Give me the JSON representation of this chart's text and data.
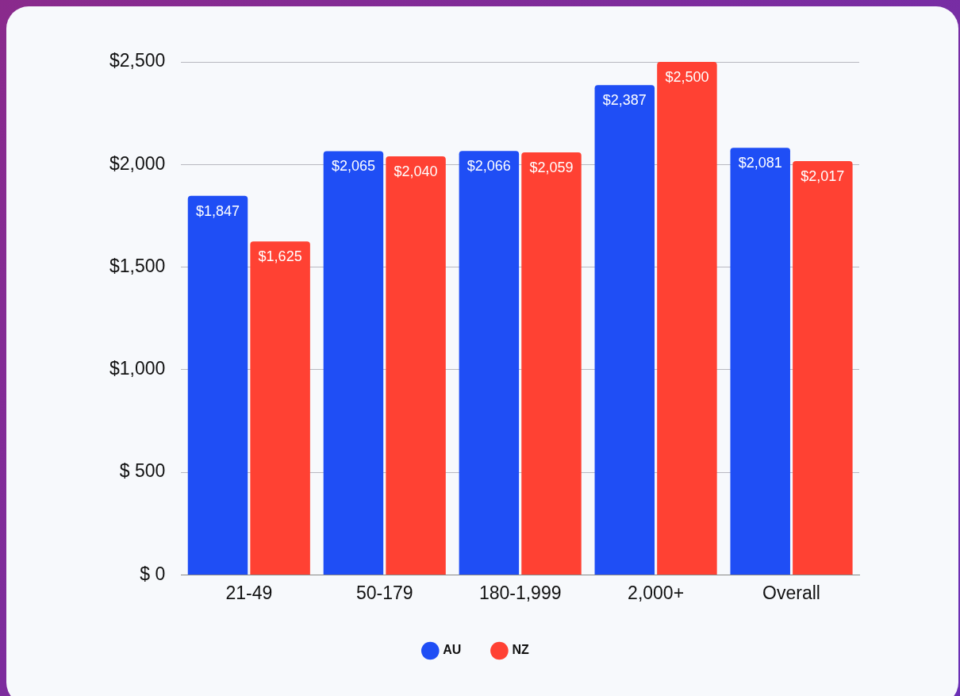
{
  "chart_data": {
    "type": "bar",
    "categories": [
      "21-49",
      "50-179",
      "180-1,999",
      "2,000+",
      "Overall"
    ],
    "series": [
      {
        "name": "AU",
        "color": "#1f4ef5",
        "values": [
          1847,
          2065,
          2066,
          2387,
          2081
        ],
        "value_labels": [
          "$1,847",
          "$2,065",
          "$2,066",
          "$2,387",
          "$2,081"
        ]
      },
      {
        "name": "NZ",
        "color": "#ff4133",
        "values": [
          1625,
          2040,
          2059,
          2500,
          2017
        ],
        "value_labels": [
          "$1,625",
          "$2,040",
          "$2,059",
          "$2,500",
          "$2,017"
        ]
      }
    ],
    "ylim": [
      0,
      2500
    ],
    "yticks": [
      {
        "value": 0,
        "label": "$ 0"
      },
      {
        "value": 500,
        "label": "$ 500"
      },
      {
        "value": 1000,
        "label": "$1,000"
      },
      {
        "value": 1500,
        "label": "$1,500"
      },
      {
        "value": 2000,
        "label": "$2,000"
      },
      {
        "value": 2500,
        "label": "$2,500"
      }
    ],
    "grid": "y",
    "legend": "bottom",
    "marker": "circle"
  }
}
